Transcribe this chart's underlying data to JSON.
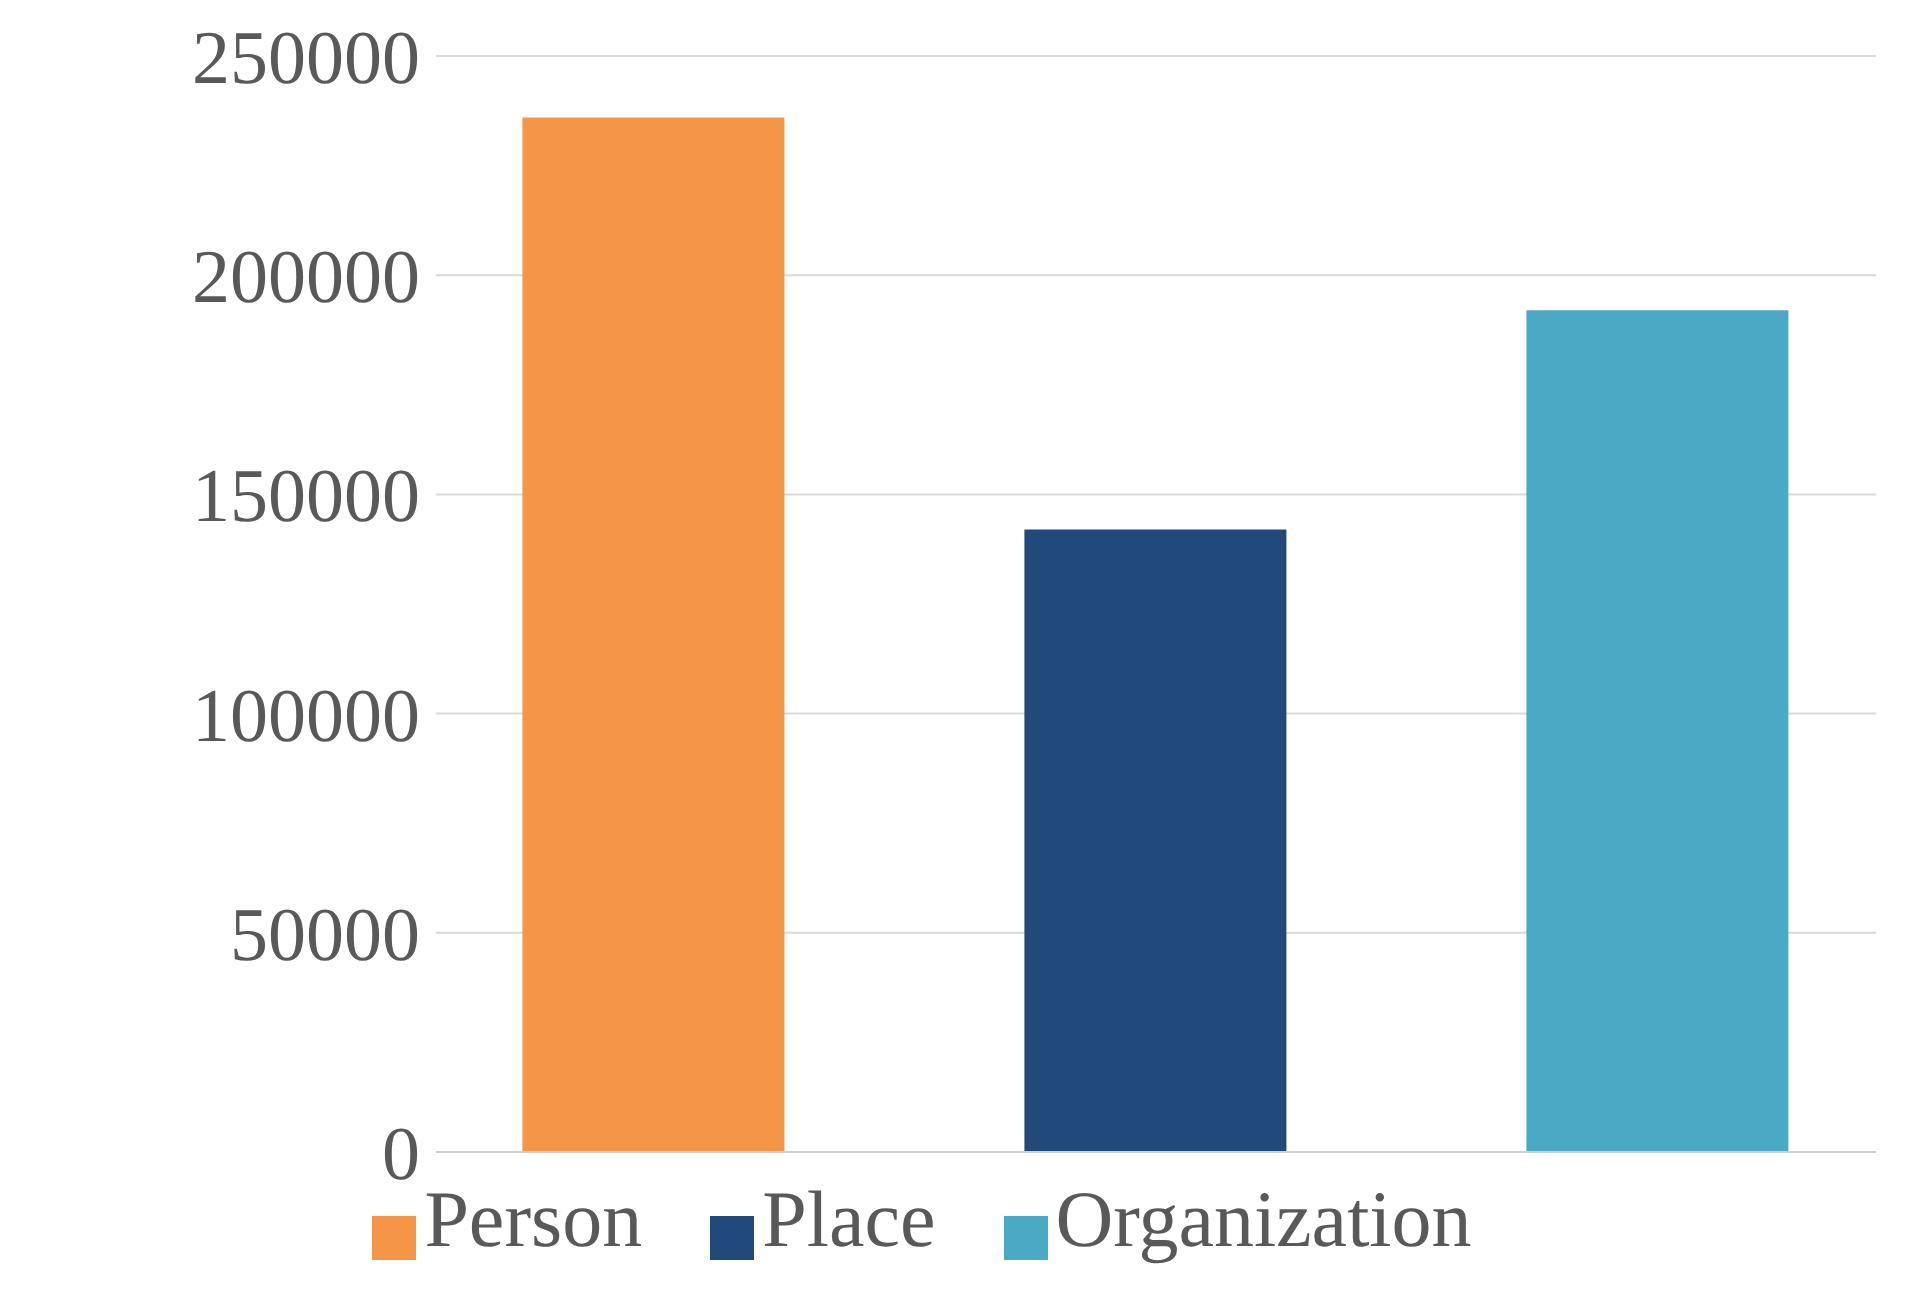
{
  "chart_data": {
    "type": "bar",
    "categories": [
      null
    ],
    "series": [
      {
        "name": "Person",
        "color": "#f59547",
        "values": [
          236000
        ]
      },
      {
        "name": "Place",
        "color": "#214a7a",
        "values": [
          142000
        ]
      },
      {
        "name": "Organization",
        "color": "#4aaac5",
        "values": [
          192000
        ]
      }
    ],
    "ylim": [
      0,
      250000
    ],
    "yticks": [
      0,
      50000,
      100000,
      150000,
      200000,
      250000
    ],
    "grid": "y",
    "legend": "bottom"
  }
}
